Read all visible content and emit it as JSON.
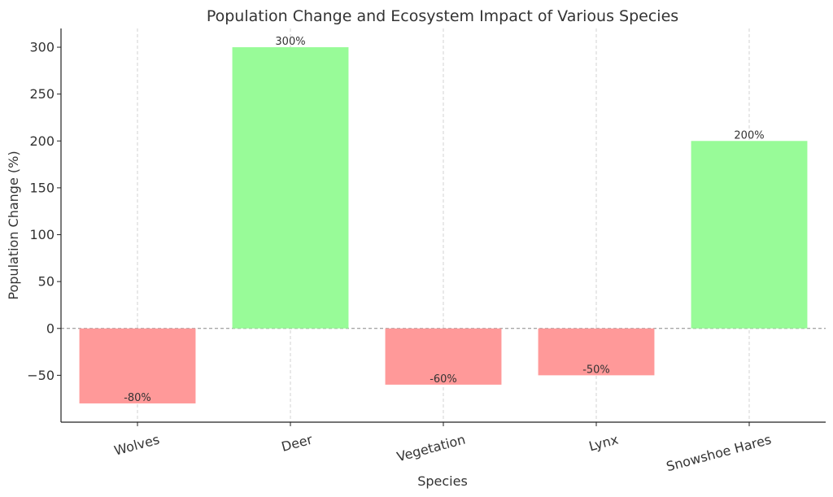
{
  "chart_data": {
    "type": "bar",
    "title": "Population Change and Ecosystem Impact of Various Species",
    "xlabel": "Species",
    "ylabel": "Population Change (%)",
    "categories": [
      "Wolves",
      "Deer",
      "Vegetation",
      "Lynx",
      "Snowshoe Hares"
    ],
    "values": [
      -80,
      300,
      -60,
      -50,
      200
    ],
    "data_labels": [
      "-80%",
      "300%",
      "-60%",
      "-50%",
      "200%"
    ],
    "ylim": [
      -100,
      320
    ],
    "yticks": [
      -50,
      0,
      50,
      100,
      150,
      200,
      250,
      300
    ],
    "ytick_labels": [
      "−50",
      "0",
      "50",
      "100",
      "150",
      "200",
      "250",
      "300"
    ],
    "grid": "vertical dashed",
    "zero_line": "dashed",
    "colors": {
      "positive": "#98fb98",
      "negative": "#ff9999",
      "grid": "#c8c8c8",
      "zero_line": "#888888",
      "axis": "#222222"
    }
  }
}
